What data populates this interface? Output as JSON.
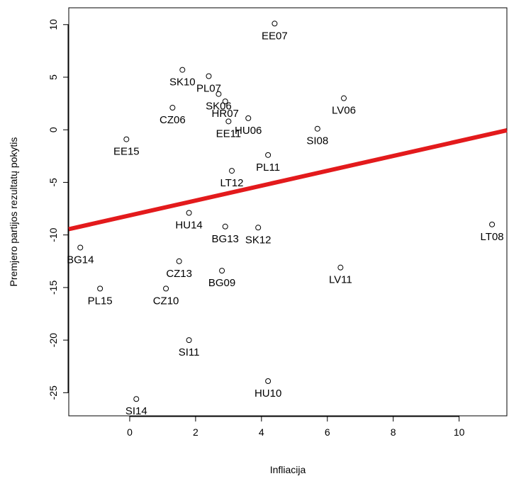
{
  "chart_data": {
    "type": "scatter",
    "title": "",
    "xlabel": "Infliacija",
    "ylabel": "Premjero partijos rezultatų pokytis",
    "xlim": [
      -1.85,
      11.45
    ],
    "ylim": [
      -27.2,
      11.6
    ],
    "xticks": [
      0,
      2,
      4,
      6,
      8,
      10
    ],
    "yticks": [
      10,
      5,
      0,
      -5,
      -10,
      -15,
      -20,
      -25
    ],
    "grid": false,
    "legend": "none",
    "colors": {
      "points": "#000000",
      "fit_line": "#e31a1c"
    },
    "fit_line": {
      "x": [
        -1.85,
        11.45
      ],
      "y": [
        -9.45,
        -0.05
      ]
    },
    "points": [
      {
        "label": "EE07",
        "x": 4.4,
        "y": 10.1
      },
      {
        "label": "SK10",
        "x": 1.6,
        "y": 5.7
      },
      {
        "label": "PL07",
        "x": 2.4,
        "y": 5.1
      },
      {
        "label": "SK06",
        "x": 2.7,
        "y": 3.4
      },
      {
        "label": "HR07",
        "x": 2.9,
        "y": 2.7
      },
      {
        "label": "CZ06",
        "x": 1.3,
        "y": 2.1
      },
      {
        "label": "HU06",
        "x": 3.6,
        "y": 1.1
      },
      {
        "label": "EE11",
        "x": 3.0,
        "y": 0.8
      },
      {
        "label": "LV06",
        "x": 6.5,
        "y": 3.0
      },
      {
        "label": "SI08",
        "x": 5.7,
        "y": 0.1
      },
      {
        "label": "EE15",
        "x": -0.1,
        "y": -0.9
      },
      {
        "label": "PL11",
        "x": 4.2,
        "y": -2.4
      },
      {
        "label": "LT12",
        "x": 3.1,
        "y": -3.9
      },
      {
        "label": "HU14",
        "x": 1.8,
        "y": -7.9
      },
      {
        "label": "BG13",
        "x": 2.9,
        "y": -9.2
      },
      {
        "label": "SK12",
        "x": 3.9,
        "y": -9.3
      },
      {
        "label": "LT08",
        "x": 11.0,
        "y": -9.0
      },
      {
        "label": "BG14",
        "x": -1.5,
        "y": -11.2
      },
      {
        "label": "CZ13",
        "x": 1.5,
        "y": -12.5
      },
      {
        "label": "BG09",
        "x": 2.8,
        "y": -13.4
      },
      {
        "label": "LV11",
        "x": 6.4,
        "y": -13.1
      },
      {
        "label": "PL15",
        "x": -0.9,
        "y": -15.1
      },
      {
        "label": "CZ10",
        "x": 1.1,
        "y": -15.1
      },
      {
        "label": "SI11",
        "x": 1.8,
        "y": -20.0
      },
      {
        "label": "HU10",
        "x": 4.2,
        "y": -23.9
      },
      {
        "label": "SI14",
        "x": 0.2,
        "y": -25.6
      }
    ]
  }
}
